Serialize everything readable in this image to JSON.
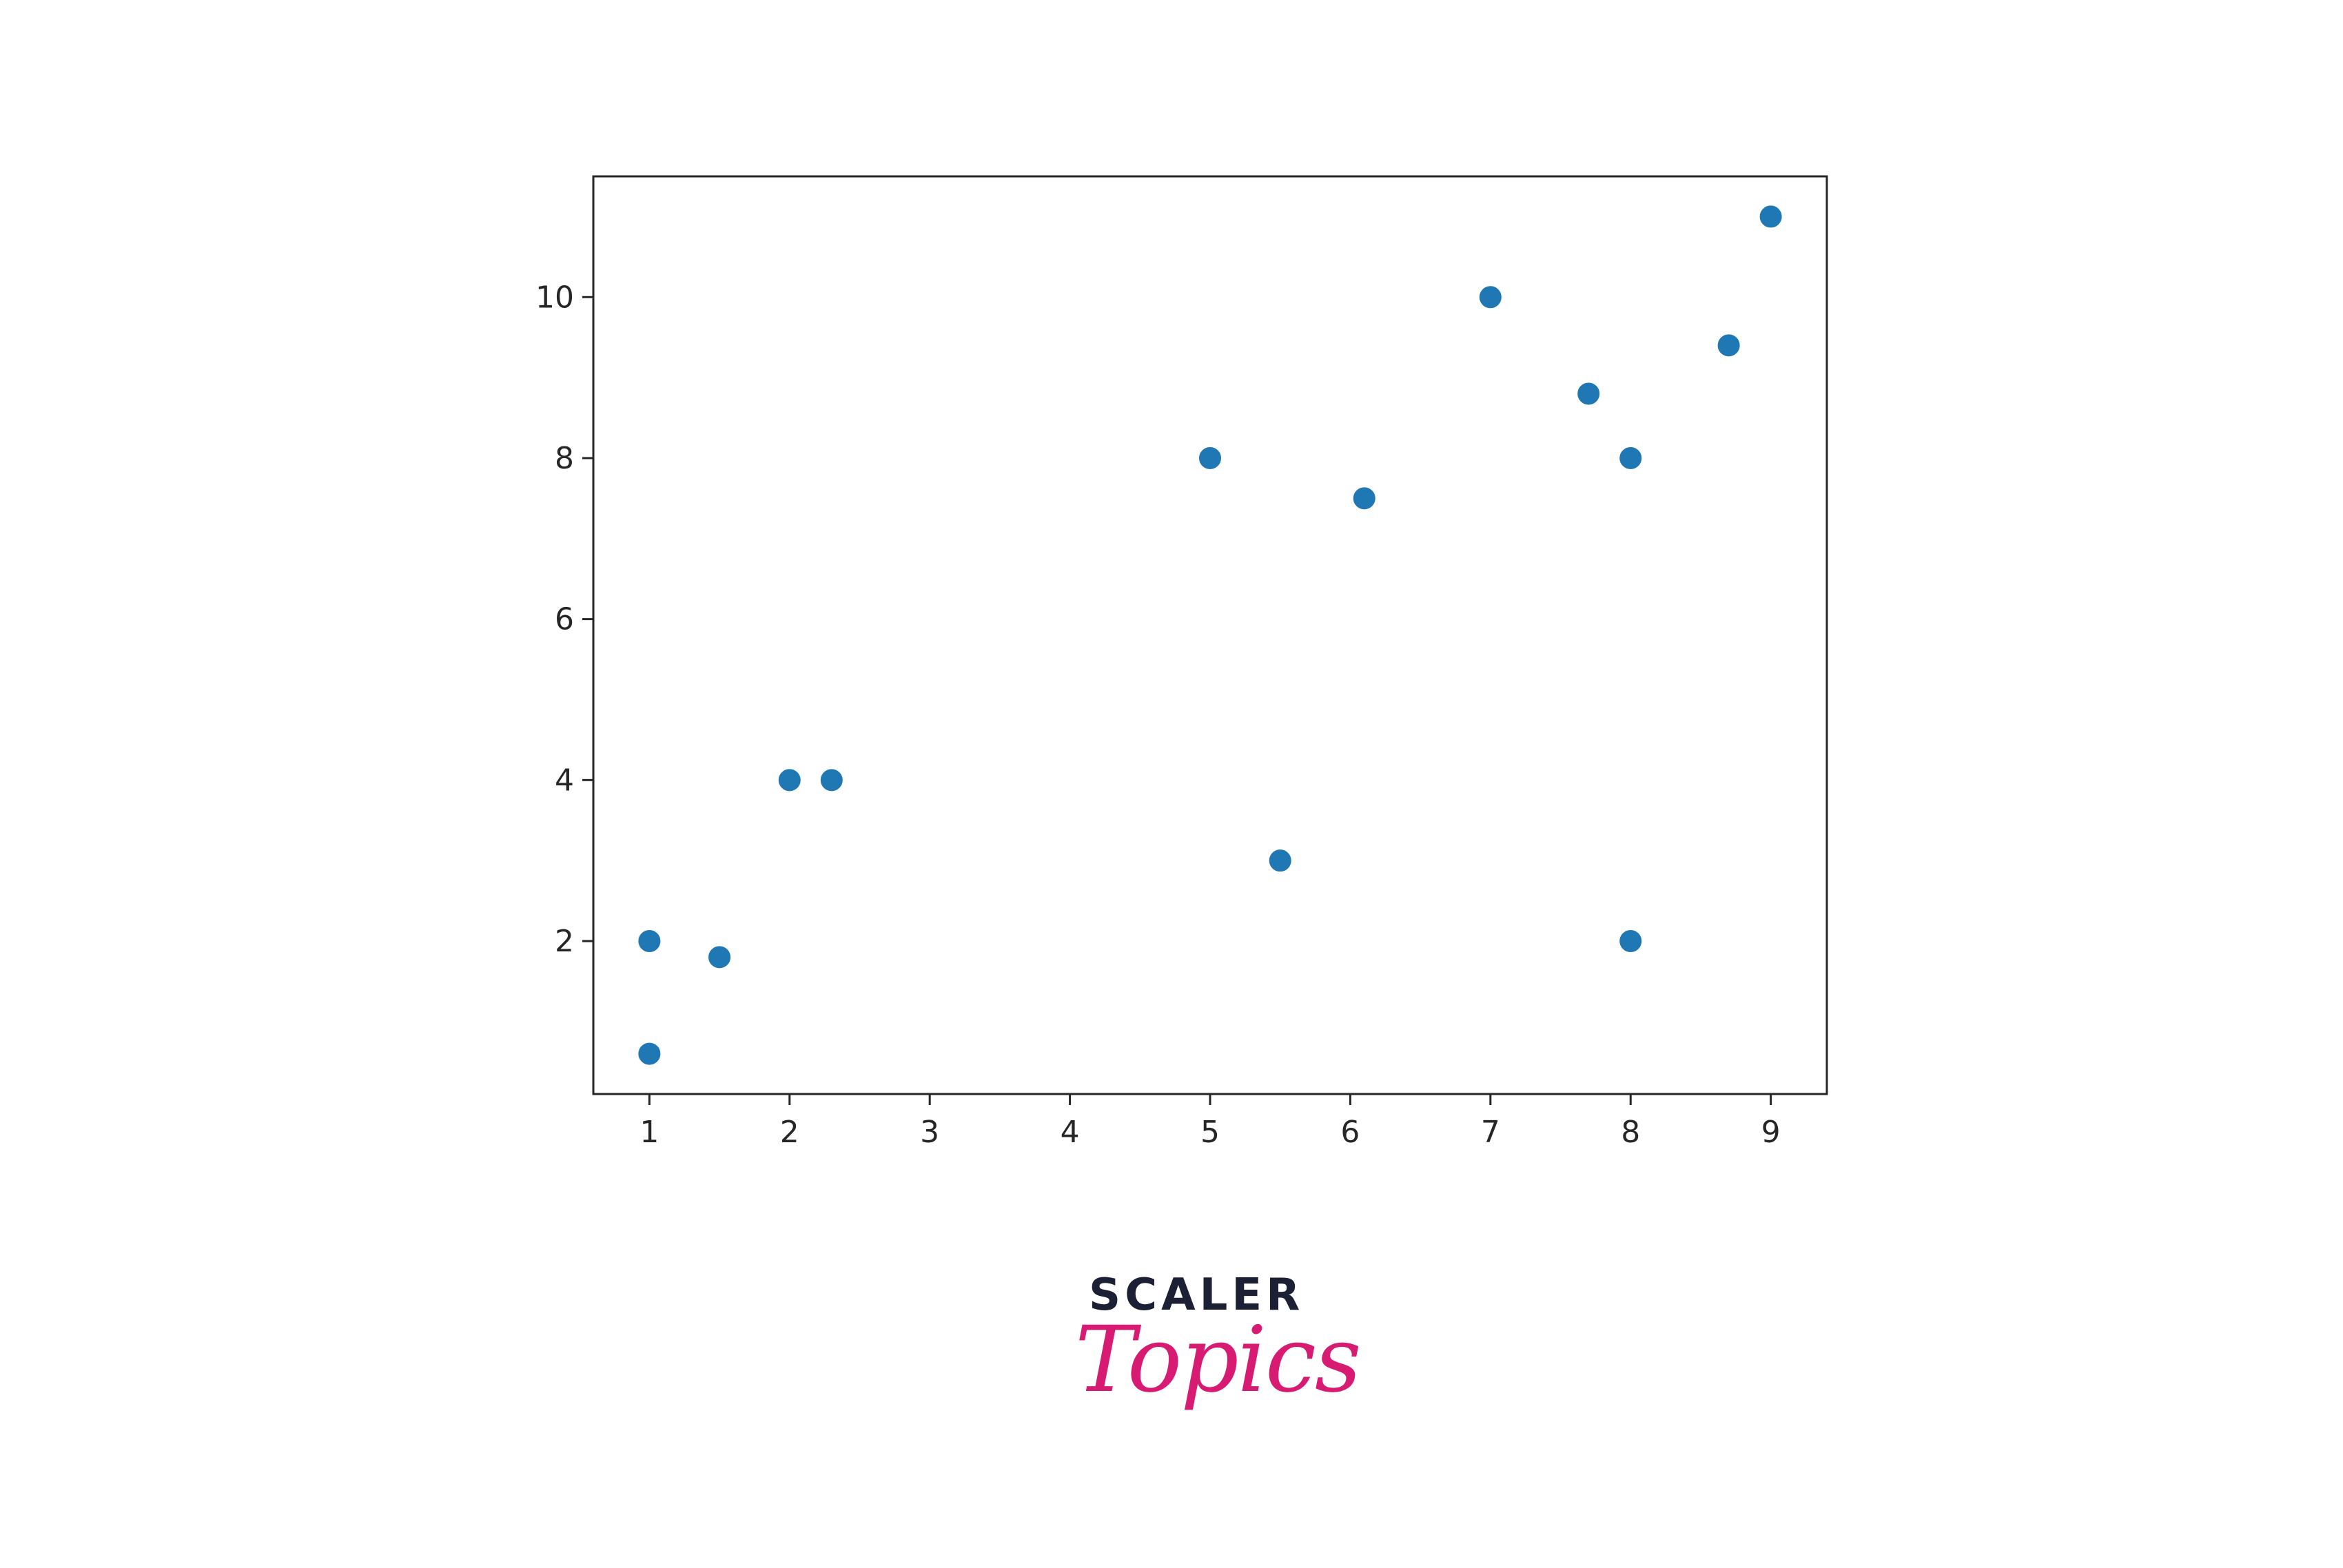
{
  "chart_data": {
    "type": "scatter",
    "title": "",
    "xlabel": "",
    "ylabel": "",
    "xlim": [
      0.6,
      9.4
    ],
    "ylim": [
      0.1,
      11.5
    ],
    "xticks": [
      1,
      2,
      3,
      4,
      5,
      6,
      7,
      8,
      9
    ],
    "yticks": [
      2,
      4,
      6,
      8,
      10
    ],
    "grid": false,
    "legend": "none",
    "marker_color": "#1f77b4",
    "points": [
      {
        "x": 1,
        "y": 2
      },
      {
        "x": 1,
        "y": 0.6
      },
      {
        "x": 1.5,
        "y": 1.8
      },
      {
        "x": 2,
        "y": 4
      },
      {
        "x": 2.3,
        "y": 4
      },
      {
        "x": 5,
        "y": 8
      },
      {
        "x": 5.5,
        "y": 3
      },
      {
        "x": 6.1,
        "y": 7.5
      },
      {
        "x": 7,
        "y": 10
      },
      {
        "x": 7.7,
        "y": 8.8
      },
      {
        "x": 8,
        "y": 8
      },
      {
        "x": 8,
        "y": 2
      },
      {
        "x": 8.7,
        "y": 9.4
      },
      {
        "x": 9,
        "y": 11
      }
    ]
  },
  "brand": {
    "wordmark": "SCALER",
    "script": "Topics",
    "wordmark_color": "#1b2035",
    "script_color": "#d81b72"
  }
}
